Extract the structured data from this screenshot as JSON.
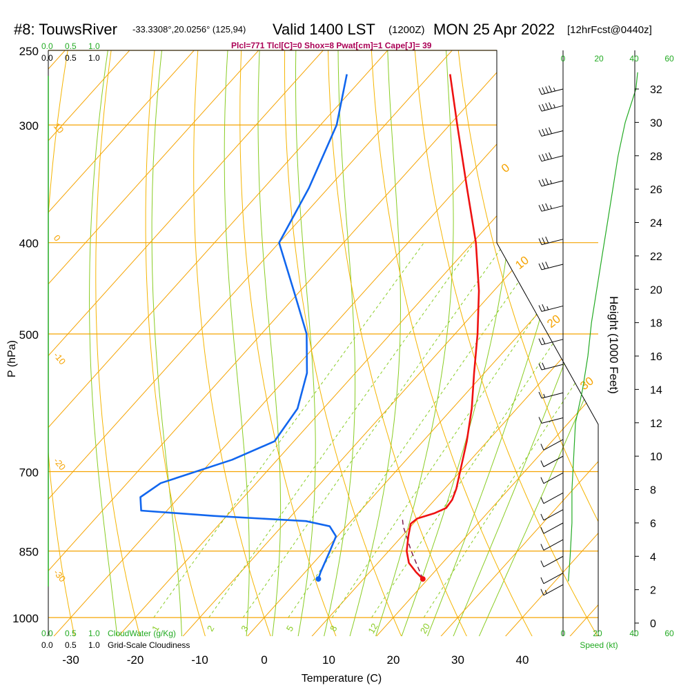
{
  "header": {
    "station": "#8: TouwsRiver",
    "coords": "-33.3308°,20.0256° (125,94)",
    "valid_time": "Valid 1400 LST",
    "zulu": "(1200Z)",
    "date": "MON 25 Apr 2022",
    "forecast": "[12hrFcst@0440z]"
  },
  "indices_line": "Plcl=771 Tlcl[C]=0 Shox=8 Pwat[cm]=1 Cape[J]= 39",
  "left_axis": {
    "label": "P (hPa)",
    "pressure_ticks": [
      "250",
      "300",
      "400",
      "500",
      "700",
      "850",
      "1000"
    ]
  },
  "bottom_axis": {
    "label": "Temperature (C)",
    "ticks": [
      "-30",
      "-20",
      "-10",
      "0",
      "10",
      "20",
      "30",
      "40"
    ]
  },
  "right_axis": {
    "label": "Height (1000 Feet)",
    "ticks": [
      "0",
      "2",
      "4",
      "6",
      "8",
      "10",
      "12",
      "14",
      "16",
      "18",
      "20",
      "22",
      "24",
      "26",
      "28",
      "30",
      "32"
    ]
  },
  "cloud_scale": {
    "top_green": [
      "0.0",
      "0.5",
      "1.0"
    ],
    "top_black": [
      "0.0",
      "0.5",
      "1.0"
    ],
    "bottom_green": [
      "0.0",
      "0.5",
      "1.0"
    ],
    "bottom_green_label": "CloudWater (g/Kg)",
    "bottom_black": [
      "0.0",
      "0.5",
      "1.0"
    ],
    "bottom_black_label": "Grid-Scale Cloudiness"
  },
  "speed_scale": {
    "top": [
      "0",
      "20",
      "40",
      "60"
    ],
    "bottom": [
      "0",
      "20",
      "40",
      "60"
    ],
    "label": "Speed (kt)"
  },
  "isotherm_labels": [
    "10",
    "0",
    "-10",
    "-20",
    "-30"
  ],
  "theta_labels": [
    "0",
    "10",
    "20",
    "30"
  ],
  "mixing_ratio_labels": [
    "1",
    "2",
    "3",
    "5",
    "8",
    "12",
    "20"
  ],
  "colors": {
    "temperature": "#ee1111",
    "dewpoint": "#1166ee",
    "isobar": "#f5a300",
    "dry_adiabat": "#f5b400",
    "moist_adiabat": "#88cc22",
    "mixing_ratio": "#88cc22",
    "cloud_green": "#22aa22",
    "parcel": "#771144",
    "indices": "#aa0055"
  },
  "chart_data": {
    "type": "line",
    "title": "#8: TouwsRiver Valid 1400 LST (1200Z) MON 25 Apr 2022 [12hrFcst@0440z]",
    "xlabel": "Temperature (C)",
    "ylabel": "P (hPa)",
    "y2label": "Height (1000 Feet)",
    "xlim": [
      -35,
      45
    ],
    "ylim": [
      1000,
      250
    ],
    "yscale": "log",
    "skew": true,
    "series": [
      {
        "name": "Temperature",
        "points": [
          {
            "p": 910,
            "t": 19.2
          },
          {
            "p": 895,
            "t": 17.2
          },
          {
            "p": 875,
            "t": 14.8
          },
          {
            "p": 850,
            "t": 12.8
          },
          {
            "p": 820,
            "t": 11.0
          },
          {
            "p": 795,
            "t": 9.6
          },
          {
            "p": 785,
            "t": 9.9
          },
          {
            "p": 775,
            "t": 11.8
          },
          {
            "p": 765,
            "t": 12.9
          },
          {
            "p": 750,
            "t": 12.7
          },
          {
            "p": 730,
            "t": 11.8
          },
          {
            "p": 700,
            "t": 10.0
          },
          {
            "p": 650,
            "t": 6.8
          },
          {
            "p": 600,
            "t": 3.0
          },
          {
            "p": 550,
            "t": -1.6
          },
          {
            "p": 500,
            "t": -6.5
          },
          {
            "p": 450,
            "t": -12.3
          },
          {
            "p": 400,
            "t": -19.5
          },
          {
            "p": 350,
            "t": -28.5
          },
          {
            "p": 300,
            "t": -38.8
          },
          {
            "p": 265,
            "t": -47.0
          }
        ]
      },
      {
        "name": "Dewpoint",
        "points": [
          {
            "p": 910,
            "t": 3.0
          },
          {
            "p": 895,
            "t": 2.4
          },
          {
            "p": 850,
            "t": 0.9
          },
          {
            "p": 820,
            "t": -0.2
          },
          {
            "p": 800,
            "t": -2.6
          },
          {
            "p": 790,
            "t": -7.0
          },
          {
            "p": 780,
            "t": -22.0
          },
          {
            "p": 770,
            "t": -34.0
          },
          {
            "p": 745,
            "t": -36.0
          },
          {
            "p": 720,
            "t": -34.8
          },
          {
            "p": 680,
            "t": -27.0
          },
          {
            "p": 650,
            "t": -23.0
          },
          {
            "p": 600,
            "t": -24.0
          },
          {
            "p": 550,
            "t": -27.5
          },
          {
            "p": 500,
            "t": -33.0
          },
          {
            "p": 450,
            "t": -41.0
          },
          {
            "p": 400,
            "t": -50.0
          },
          {
            "p": 350,
            "t": -53.0
          },
          {
            "p": 300,
            "t": -57.5
          },
          {
            "p": 265,
            "t": -63.0
          }
        ]
      },
      {
        "name": "Parcel",
        "points": [
          {
            "p": 910,
            "t": 19.2
          },
          {
            "p": 850,
            "t": 13.5
          },
          {
            "p": 800,
            "t": 8.8
          },
          {
            "p": 785,
            "t": 7.6
          }
        ]
      }
    ],
    "surface_temperature": 19.2,
    "surface_dewpoint": 3.0,
    "surface_pressure": 910,
    "wind_speed_profile_kt": [
      {
        "h_kft": 2.5,
        "v": 3
      },
      {
        "h_kft": 4.0,
        "v": 4
      },
      {
        "h_kft": 6.0,
        "v": 5
      },
      {
        "h_kft": 8.0,
        "v": 5
      },
      {
        "h_kft": 10.0,
        "v": 6
      },
      {
        "h_kft": 12.0,
        "v": 7
      },
      {
        "h_kft": 14.0,
        "v": 11
      },
      {
        "h_kft": 16.0,
        "v": 14
      },
      {
        "h_kft": 18.0,
        "v": 16
      },
      {
        "h_kft": 20.0,
        "v": 19
      },
      {
        "h_kft": 22.0,
        "v": 22
      },
      {
        "h_kft": 24.0,
        "v": 25
      },
      {
        "h_kft": 26.0,
        "v": 28
      },
      {
        "h_kft": 28.0,
        "v": 31
      },
      {
        "h_kft": 30.0,
        "v": 35
      },
      {
        "h_kft": 32.0,
        "v": 41
      },
      {
        "h_kft": 33.0,
        "v": 42
      }
    ],
    "wind_barbs": [
      {
        "h_kft": 2.3,
        "speed_kt": 15
      },
      {
        "h_kft": 3.0,
        "speed_kt": 10
      },
      {
        "h_kft": 4.0,
        "speed_kt": 10
      },
      {
        "h_kft": 5.0,
        "speed_kt": 10
      },
      {
        "h_kft": 6.0,
        "speed_kt": 10
      },
      {
        "h_kft": 6.8,
        "speed_kt": 10
      },
      {
        "h_kft": 7.8,
        "speed_kt": 10
      },
      {
        "h_kft": 9.0,
        "speed_kt": 10
      },
      {
        "h_kft": 10.0,
        "speed_kt": 10
      },
      {
        "h_kft": 11.0,
        "speed_kt": 10
      },
      {
        "h_kft": 12.3,
        "speed_kt": 10
      },
      {
        "h_kft": 13.8,
        "speed_kt": 15
      },
      {
        "h_kft": 15.5,
        "speed_kt": 20
      },
      {
        "h_kft": 17.0,
        "speed_kt": 20
      },
      {
        "h_kft": 19.0,
        "speed_kt": 25
      },
      {
        "h_kft": 21.5,
        "speed_kt": 30
      },
      {
        "h_kft": 23.0,
        "speed_kt": 30
      },
      {
        "h_kft": 25.0,
        "speed_kt": 35
      },
      {
        "h_kft": 26.5,
        "speed_kt": 35
      },
      {
        "h_kft": 28.0,
        "speed_kt": 40
      },
      {
        "h_kft": 29.5,
        "speed_kt": 40
      },
      {
        "h_kft": 31.0,
        "speed_kt": 45
      },
      {
        "h_kft": 32.0,
        "speed_kt": 45
      }
    ]
  }
}
